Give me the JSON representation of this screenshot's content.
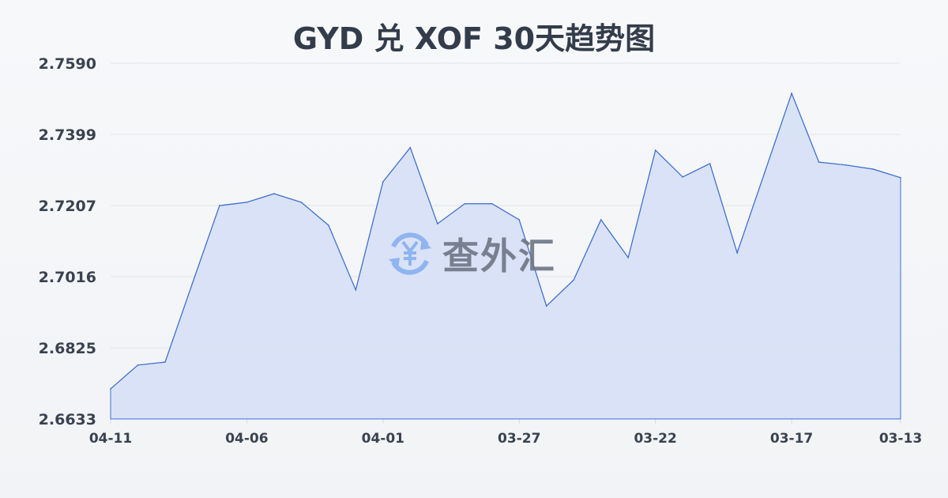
{
  "title": "GYD 兑 XOF 30天趋势图",
  "watermark": {
    "text": "查外汇",
    "icon": "yuan-exchange-icon"
  },
  "colors": {
    "line": "#3f6fd0",
    "fill": "#d6e0f5",
    "title": "#333c4b",
    "watermark_icon": "#8fb4f0"
  },
  "chart_data": {
    "type": "area",
    "title": "GYD 兑 XOF 30天趋势图",
    "xlabel": "",
    "ylabel": "",
    "ylim": [
      2.6633,
      2.759
    ],
    "yticks": [
      "2.7590",
      "2.7399",
      "2.7207",
      "2.7016",
      "2.6825",
      "2.6633"
    ],
    "xticks": [
      "04-11",
      "04-06",
      "04-01",
      "03-27",
      "03-22",
      "03-17",
      "03-13"
    ],
    "grid": true,
    "x": [
      "04-11",
      "04-10",
      "04-09",
      "04-08",
      "04-07",
      "04-06",
      "04-05",
      "04-04",
      "04-03",
      "04-02",
      "04-01",
      "03-31",
      "03-30",
      "03-29",
      "03-28",
      "03-27",
      "03-26",
      "03-25",
      "03-24",
      "03-23",
      "03-22",
      "03-21",
      "03-20",
      "03-19",
      "03-18",
      "03-17",
      "03-16",
      "03-15",
      "03-14",
      "03-13"
    ],
    "values": [
      2.6714,
      2.6778,
      2.6786,
      2.6997,
      2.7207,
      2.7216,
      2.7239,
      2.7216,
      2.7154,
      2.698,
      2.7271,
      2.7363,
      2.7158,
      2.7212,
      2.7212,
      2.7169,
      2.6937,
      2.7007,
      2.7169,
      2.7067,
      2.7356,
      2.7284,
      2.732,
      2.708,
      2.7294,
      2.7509,
      2.7324,
      2.7316,
      2.7305,
      2.7282
    ]
  }
}
